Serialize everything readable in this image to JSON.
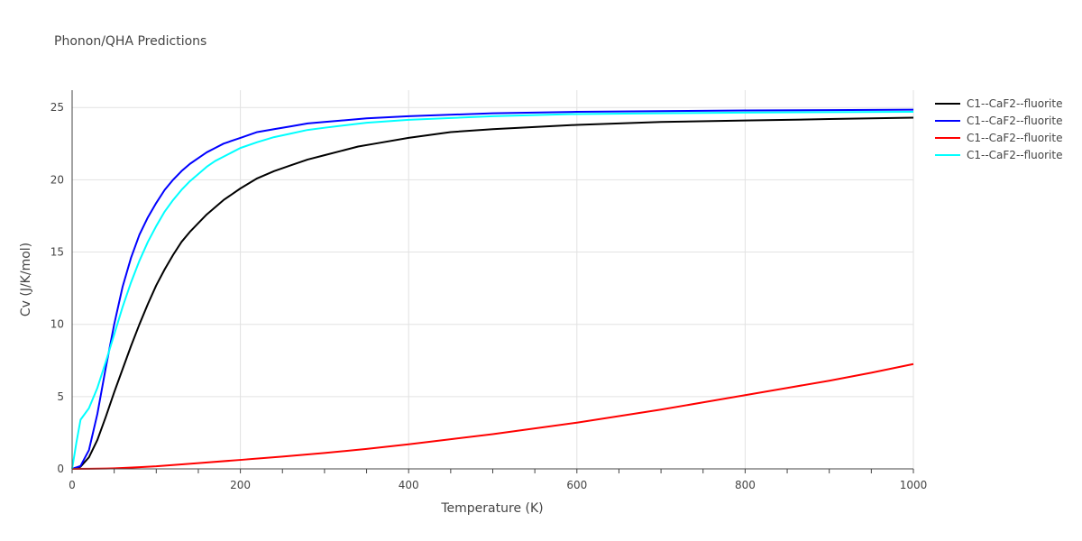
{
  "chart_data": {
    "type": "line",
    "title": "Phonon/QHA Predictions",
    "xlabel": "Temperature (K)",
    "ylabel": "Cv (J/K/mol)",
    "xlim": [
      0,
      1000
    ],
    "ylim": [
      0,
      26.2
    ],
    "xticks": [
      0,
      200,
      400,
      600,
      800,
      1000
    ],
    "yticks": [
      0,
      5,
      10,
      15,
      20,
      25
    ],
    "grid": true,
    "legend_position": "top-right",
    "series": [
      {
        "name": "C1--CaF2--fluorite",
        "color": "#000000",
        "x": [
          0,
          10,
          20,
          30,
          40,
          50,
          60,
          70,
          80,
          90,
          100,
          110,
          120,
          130,
          140,
          150,
          160,
          170,
          180,
          190,
          200,
          220,
          240,
          260,
          280,
          300,
          320,
          340,
          360,
          400,
          450,
          500,
          600,
          700,
          800,
          900,
          1000
        ],
        "y": [
          0,
          0.15,
          0.8,
          2.0,
          3.6,
          5.3,
          6.9,
          8.5,
          10.0,
          11.4,
          12.7,
          13.8,
          14.8,
          15.7,
          16.4,
          17.0,
          17.6,
          18.1,
          18.6,
          19.0,
          19.4,
          20.1,
          20.6,
          21.0,
          21.4,
          21.7,
          22.0,
          22.3,
          22.5,
          22.9,
          23.3,
          23.5,
          23.8,
          24.0,
          24.1,
          24.2,
          24.3
        ]
      },
      {
        "name": "C1--CaF2--fluorite",
        "color": "#0000ff",
        "x": [
          0,
          10,
          20,
          30,
          40,
          50,
          60,
          70,
          80,
          90,
          100,
          110,
          120,
          130,
          140,
          150,
          160,
          170,
          180,
          190,
          200,
          220,
          240,
          260,
          280,
          300,
          350,
          400,
          500,
          600,
          700,
          800,
          900,
          1000
        ],
        "y": [
          0,
          0.2,
          1.3,
          3.8,
          7.0,
          10.0,
          12.6,
          14.6,
          16.2,
          17.4,
          18.4,
          19.3,
          20.0,
          20.6,
          21.1,
          21.5,
          21.9,
          22.2,
          22.5,
          22.7,
          22.9,
          23.3,
          23.5,
          23.7,
          23.9,
          24.0,
          24.25,
          24.4,
          24.6,
          24.7,
          24.75,
          24.8,
          24.82,
          24.85
        ]
      },
      {
        "name": "C1--CaF2--fluorite",
        "color": "#ff0000",
        "x": [
          0,
          20,
          40,
          60,
          80,
          100,
          150,
          200,
          250,
          300,
          350,
          400,
          450,
          500,
          550,
          600,
          650,
          700,
          750,
          800,
          850,
          900,
          950,
          1000
        ],
        "y": [
          0,
          0.005,
          0.02,
          0.06,
          0.12,
          0.18,
          0.4,
          0.62,
          0.85,
          1.1,
          1.38,
          1.7,
          2.05,
          2.4,
          2.8,
          3.2,
          3.65,
          4.1,
          4.6,
          5.1,
          5.6,
          6.1,
          6.65,
          7.25
        ]
      },
      {
        "name": "C1--CaF2--fluorite",
        "color": "#00ffff",
        "x": [
          0,
          5,
          10,
          20,
          30,
          40,
          50,
          60,
          70,
          80,
          90,
          100,
          110,
          120,
          130,
          140,
          150,
          160,
          170,
          180,
          190,
          200,
          220,
          240,
          260,
          280,
          300,
          350,
          400,
          500,
          600,
          700,
          800,
          900,
          1000
        ],
        "y": [
          0,
          1.8,
          3.4,
          4.2,
          5.6,
          7.4,
          9.3,
          11.2,
          12.9,
          14.4,
          15.7,
          16.8,
          17.8,
          18.6,
          19.3,
          19.9,
          20.4,
          20.9,
          21.3,
          21.6,
          21.9,
          22.2,
          22.6,
          22.95,
          23.2,
          23.45,
          23.6,
          23.95,
          24.15,
          24.4,
          24.55,
          24.6,
          24.65,
          24.68,
          24.7
        ]
      }
    ]
  }
}
